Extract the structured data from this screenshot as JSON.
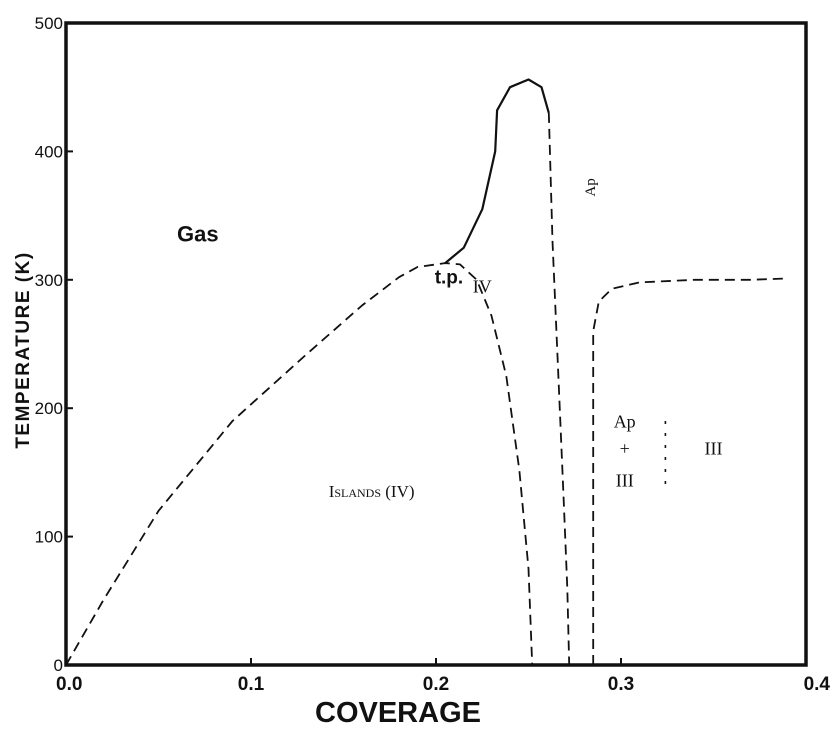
{
  "chart_data": {
    "type": "line",
    "title": "",
    "xlabel": "COVERAGE",
    "ylabel": "TEMPERATURE (K)",
    "xlim": [
      0.0,
      0.4
    ],
    "ylim": [
      0,
      500
    ],
    "x_ticks": [
      "0.0",
      "0.1",
      "0.2",
      "0.3",
      "0.4"
    ],
    "y_ticks": [
      "0",
      "100",
      "200",
      "300",
      "400",
      "500"
    ],
    "grid": false,
    "legend": "none",
    "series": [
      {
        "style": "solid",
        "points": [
          [
            0.205,
            313
          ],
          [
            0.215,
            325
          ],
          [
            0.225,
            355
          ],
          [
            0.232,
            400
          ],
          [
            0.233,
            432
          ],
          [
            0.24,
            450
          ],
          [
            0.25,
            456
          ],
          [
            0.257,
            450
          ],
          [
            0.261,
            430
          ]
        ]
      },
      {
        "style": "dashed",
        "points": [
          [
            0.0,
            0
          ],
          [
            0.02,
            50
          ],
          [
            0.05,
            120
          ],
          [
            0.09,
            190
          ],
          [
            0.13,
            242
          ],
          [
            0.16,
            280
          ],
          [
            0.18,
            302
          ],
          [
            0.19,
            310
          ],
          [
            0.205,
            313
          ],
          [
            0.213,
            312
          ],
          [
            0.222,
            300
          ],
          [
            0.23,
            272
          ],
          [
            0.238,
            225
          ],
          [
            0.245,
            152
          ],
          [
            0.25,
            75
          ],
          [
            0.252,
            0
          ]
        ]
      },
      {
        "style": "dashed",
        "points": [
          [
            0.261,
            430
          ],
          [
            0.263,
            330
          ],
          [
            0.266,
            230
          ],
          [
            0.269,
            130
          ],
          [
            0.271,
            60
          ],
          [
            0.272,
            0
          ]
        ]
      },
      {
        "style": "dashed",
        "points": [
          [
            0.285,
            0
          ],
          [
            0.285,
            260
          ],
          [
            0.288,
            283
          ],
          [
            0.295,
            293
          ],
          [
            0.31,
            298
          ],
          [
            0.34,
            300
          ],
          [
            0.37,
            300
          ],
          [
            0.389,
            301
          ]
        ]
      },
      {
        "style": "dotted",
        "points": [
          [
            0.324,
            190
          ],
          [
            0.324,
            140
          ]
        ]
      }
    ],
    "annotations": [
      {
        "text": "Gas",
        "x": 0.06,
        "y": 330
      },
      {
        "text": "t.p.",
        "x": 0.207,
        "y": 297
      },
      {
        "text": "IV",
        "x": 0.225,
        "y": 290
      },
      {
        "text": "Ap",
        "x": 0.286,
        "y": 372
      },
      {
        "text": "Islands (IV)",
        "x": 0.142,
        "y": 131
      },
      {
        "text": "Ap",
        "x": 0.302,
        "y": 185
      },
      {
        "text": "+",
        "x": 0.302,
        "y": 164
      },
      {
        "text": "III",
        "x": 0.302,
        "y": 139
      },
      {
        "text": "III",
        "x": 0.35,
        "y": 164
      }
    ]
  }
}
